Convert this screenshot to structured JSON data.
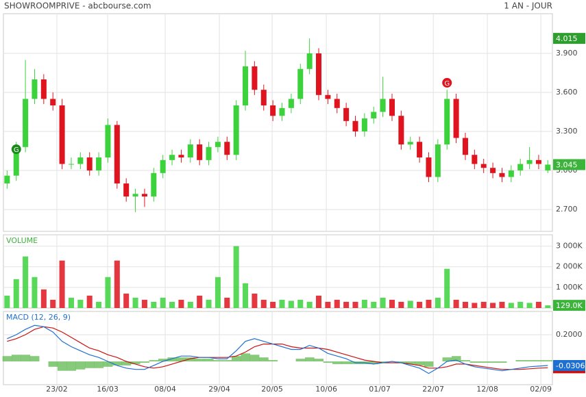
{
  "header": {
    "title": "SHOWROOMPRIVE - abcbourse.com",
    "period": "1 AN - JOUR"
  },
  "chart_data": [
    {
      "type": "candlestick",
      "up_color": "#3cd23c",
      "down_color": "#e0141e",
      "grid": true,
      "xlim": [
        -0.4,
        59.5
      ],
      "xticks": [
        {
          "value": 5.43,
          "label": "23/02"
        },
        {
          "value": 10.97,
          "label": "16/03"
        },
        {
          "value": 17.25,
          "label": "08/04"
        },
        {
          "value": 23.16,
          "label": "29/04"
        },
        {
          "value": 28.92,
          "label": "20/05"
        },
        {
          "value": 34.83,
          "label": "10/06"
        },
        {
          "value": 40.66,
          "label": "01/07"
        },
        {
          "value": 46.5,
          "label": "22/07"
        },
        {
          "value": 52.4,
          "label": "12/08"
        },
        {
          "value": 58.24,
          "label": "02/09"
        }
      ],
      "ylim": [
        2.532,
        4.205
      ],
      "yticks": [
        {
          "value": 2.7,
          "label": "2.700"
        },
        {
          "value": 3.0,
          "label": "3.000"
        },
        {
          "value": 3.3,
          "label": "3.300"
        },
        {
          "value": 3.6,
          "label": "3.600"
        },
        {
          "value": 3.9,
          "label": "3.900"
        }
      ],
      "open": [
        2.9,
        2.96,
        3.18,
        3.55,
        3.7,
        3.55,
        3.5,
        3.05,
        3.05,
        3.1,
        3.0,
        3.1,
        3.35,
        2.9,
        2.8,
        2.82,
        2.8,
        2.98,
        3.08,
        3.12,
        3.1,
        3.2,
        3.08,
        3.18,
        3.22,
        3.12,
        3.5,
        3.8,
        3.62,
        3.5,
        3.42,
        3.48,
        3.55,
        3.78,
        3.9,
        3.58,
        3.55,
        3.48,
        3.38,
        3.3,
        3.4,
        3.45,
        3.55,
        3.42,
        3.2,
        3.22,
        3.1,
        2.95,
        3.2,
        3.55,
        3.25,
        3.12,
        3.05,
        3.02,
        2.98,
        2.95,
        3.0,
        3.05,
        3.08,
        3.0
      ],
      "high": [
        3.0,
        3.22,
        3.85,
        3.78,
        3.74,
        3.6,
        3.55,
        3.1,
        3.14,
        3.14,
        3.14,
        3.4,
        3.38,
        2.94,
        2.86,
        2.86,
        3.02,
        3.12,
        3.16,
        3.16,
        3.24,
        3.24,
        3.22,
        3.26,
        3.26,
        3.54,
        3.92,
        3.84,
        3.66,
        3.54,
        3.52,
        3.59,
        3.82,
        4.015,
        3.94,
        3.62,
        3.59,
        3.52,
        3.42,
        3.44,
        3.49,
        3.72,
        3.59,
        3.46,
        3.26,
        3.26,
        3.14,
        3.24,
        3.62,
        3.59,
        3.29,
        3.16,
        3.09,
        3.06,
        3.02,
        3.04,
        3.09,
        3.18,
        3.12,
        3.08
      ],
      "low": [
        2.86,
        2.92,
        3.14,
        3.51,
        3.51,
        3.46,
        3.01,
        3.01,
        3.01,
        2.96,
        2.96,
        3.06,
        2.86,
        2.76,
        2.68,
        2.72,
        2.76,
        2.94,
        3.04,
        3.06,
        3.06,
        3.04,
        3.04,
        3.14,
        3.08,
        3.08,
        3.46,
        3.58,
        3.46,
        3.38,
        3.38,
        3.44,
        3.51,
        3.74,
        3.54,
        3.51,
        3.44,
        3.34,
        3.26,
        3.26,
        3.36,
        3.41,
        3.38,
        3.16,
        3.16,
        3.06,
        2.91,
        2.91,
        3.16,
        3.21,
        3.08,
        3.01,
        2.98,
        2.94,
        2.91,
        2.91,
        2.96,
        3.01,
        3.01,
        2.98
      ],
      "close": [
        2.96,
        3.18,
        3.55,
        3.7,
        3.55,
        3.5,
        3.05,
        3.05,
        3.1,
        3.0,
        3.1,
        3.35,
        2.9,
        2.8,
        2.82,
        2.8,
        2.98,
        3.08,
        3.12,
        3.1,
        3.2,
        3.08,
        3.18,
        3.22,
        3.12,
        3.5,
        3.8,
        3.62,
        3.5,
        3.42,
        3.48,
        3.55,
        3.78,
        3.9,
        3.58,
        3.55,
        3.48,
        3.38,
        3.3,
        3.4,
        3.45,
        3.55,
        3.42,
        3.2,
        3.22,
        3.1,
        2.95,
        3.2,
        3.55,
        3.25,
        3.12,
        3.05,
        3.02,
        2.98,
        2.95,
        3.0,
        3.05,
        3.08,
        3.05,
        3.045
      ],
      "annotations": [
        {
          "text": "G",
          "x": 1,
          "y": 3.163,
          "color": "#1a8a1a"
        },
        {
          "text": "G",
          "x": 48,
          "y": 3.674,
          "color": "#e0141e"
        }
      ]
    },
    {
      "type": "bar",
      "title": "VOLUME",
      "ylim": [
        0,
        3550
      ],
      "yticks": [
        {
          "value": 1000,
          "label": "1 000K"
        },
        {
          "value": 2000,
          "label": "2 000K"
        },
        {
          "value": 3000,
          "label": "3 000K"
        }
      ],
      "values": [
        600,
        1400,
        2500,
        1500,
        900,
        400,
        2300,
        500,
        400,
        600,
        300,
        1500,
        2300,
        700,
        500,
        400,
        300,
        500,
        300,
        400,
        300,
        600,
        400,
        1500,
        500,
        3000,
        1200,
        700,
        400,
        300,
        400,
        350,
        400,
        300,
        600,
        300,
        400,
        300,
        300,
        400,
        300,
        500,
        400,
        300,
        350,
        300,
        400,
        500,
        1900,
        400,
        300,
        250,
        300,
        250,
        300,
        250,
        300,
        250,
        300,
        129
      ],
      "value_labels": [
        null,
        null,
        null,
        null,
        null,
        null,
        null,
        null,
        null,
        null,
        null,
        null,
        null,
        null,
        null,
        null,
        null,
        null,
        null,
        null,
        null,
        null,
        null,
        null,
        null,
        null,
        null,
        null,
        null,
        null,
        null,
        null,
        null,
        null,
        null,
        null,
        null,
        null,
        null,
        null,
        null,
        null,
        null,
        null,
        null,
        null,
        null,
        null,
        null,
        null,
        null,
        null,
        null,
        null,
        null,
        null,
        null,
        null,
        null,
        "129.0K"
      ]
    },
    {
      "type": "line",
      "title": "MACD (12, 26, 9)",
      "ylim": [
        -0.174,
        0.374
      ],
      "yticks": [
        {
          "value": 0.2,
          "label": "0.2000"
        }
      ],
      "series": [
        {
          "kind": "area",
          "color": "#5fb84f",
          "values": [
            0.04,
            0.05,
            0.05,
            0.04,
            0.0,
            -0.04,
            -0.07,
            -0.07,
            -0.06,
            -0.05,
            -0.05,
            -0.04,
            -0.03,
            -0.03,
            -0.02,
            -0.01,
            0.01,
            0.02,
            0.03,
            0.03,
            0.03,
            0.02,
            0.02,
            0.01,
            0.01,
            0.04,
            0.06,
            0.05,
            0.03,
            0.01,
            0.0,
            0.0,
            0.02,
            0.03,
            0.02,
            -0.01,
            -0.02,
            -0.02,
            -0.02,
            -0.02,
            -0.02,
            -0.01,
            0.0,
            -0.01,
            -0.02,
            -0.03,
            -0.04,
            0.0,
            0.03,
            0.04,
            0.01,
            -0.01,
            -0.01,
            -0.01,
            -0.01,
            0.0,
            0.01,
            0.01,
            0.01,
            0.01
          ]
        },
        {
          "kind": "line",
          "color": "#cc1111",
          "values": [
            0.15,
            0.17,
            0.2,
            0.24,
            0.26,
            0.25,
            0.22,
            0.18,
            0.14,
            0.1,
            0.08,
            0.05,
            0.03,
            0.0,
            -0.02,
            -0.04,
            -0.05,
            -0.04,
            -0.02,
            0.0,
            0.02,
            0.03,
            0.03,
            0.03,
            0.03,
            0.04,
            0.07,
            0.11,
            0.13,
            0.13,
            0.13,
            0.11,
            0.1,
            0.1,
            0.1,
            0.09,
            0.07,
            0.05,
            0.03,
            0.01,
            0.0,
            -0.01,
            -0.01,
            -0.01,
            -0.02,
            -0.03,
            -0.05,
            -0.05,
            -0.04,
            -0.02,
            -0.02,
            -0.03,
            -0.04,
            -0.05,
            -0.06,
            -0.06,
            -0.06,
            -0.055,
            -0.05,
            -0.0476
          ]
        },
        {
          "kind": "line",
          "color": "#1f6fd0",
          "values": [
            0.17,
            0.2,
            0.24,
            0.27,
            0.26,
            0.22,
            0.15,
            0.11,
            0.08,
            0.05,
            0.03,
            0.0,
            -0.03,
            -0.05,
            -0.06,
            -0.06,
            -0.03,
            0.0,
            0.02,
            0.04,
            0.04,
            0.03,
            0.03,
            0.02,
            0.02,
            0.08,
            0.15,
            0.17,
            0.15,
            0.13,
            0.11,
            0.09,
            0.09,
            0.12,
            0.1,
            0.06,
            0.04,
            0.02,
            -0.01,
            -0.01,
            -0.02,
            -0.01,
            0.0,
            -0.01,
            -0.03,
            -0.05,
            -0.09,
            -0.05,
            0.0,
            0.01,
            -0.02,
            -0.04,
            -0.05,
            -0.06,
            -0.07,
            -0.06,
            -0.05,
            -0.04,
            -0.035,
            -0.0306
          ]
        }
      ]
    }
  ]
}
